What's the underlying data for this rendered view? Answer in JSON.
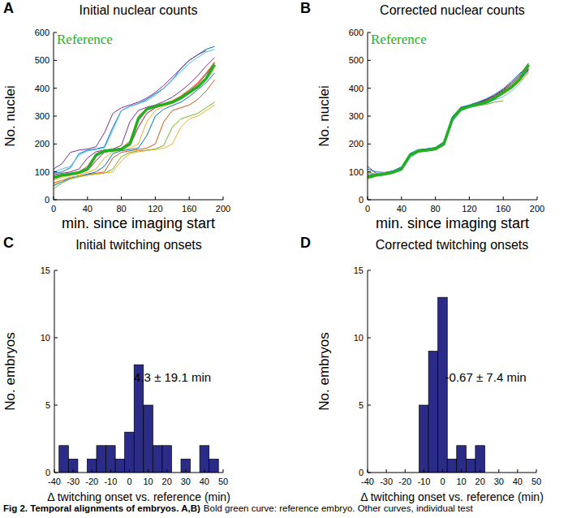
{
  "chart_data": [
    {
      "type": "line",
      "panel": "A",
      "title": "Initial nuclear counts",
      "x_label": "min. since imaging start",
      "y_label": "No. nuclei",
      "x": [
        0,
        10,
        20,
        30,
        40,
        50,
        60,
        70,
        80,
        90,
        100,
        110,
        120,
        130,
        140,
        150,
        160,
        170,
        180,
        190
      ],
      "xlim": [
        0,
        200
      ],
      "xticks": [
        0,
        40,
        80,
        120,
        160,
        200
      ],
      "ylim": [
        0,
        600
      ],
      "yticks": [
        0,
        100,
        200,
        300,
        400,
        500,
        600
      ],
      "legend": "upper left",
      "series": [
        {
          "color": "#0072bd",
          "values": [
            95,
            100,
            115,
            165,
            178,
            182,
            190,
            260,
            320,
            335,
            345,
            360,
            380,
            400,
            430,
            470,
            500,
            520,
            540,
            550
          ]
        },
        {
          "color": "#d95319",
          "values": [
            60,
            70,
            80,
            85,
            90,
            95,
            100,
            150,
            170,
            175,
            180,
            185,
            200,
            280,
            320,
            330,
            340,
            360,
            390,
            430
          ]
        },
        {
          "color": "#edb120",
          "values": [
            70,
            80,
            88,
            92,
            98,
            110,
            150,
            172,
            178,
            185,
            200,
            280,
            320,
            335,
            345,
            360,
            380,
            400,
            430,
            470
          ]
        },
        {
          "color": "#7e2f8e",
          "values": [
            90,
            95,
            100,
            110,
            150,
            172,
            178,
            182,
            195,
            280,
            320,
            332,
            340,
            352,
            368,
            390,
            415,
            445,
            480,
            510
          ]
        },
        {
          "color": "#77ac30",
          "values": [
            40,
            60,
            75,
            82,
            88,
            92,
            95,
            110,
            155,
            170,
            175,
            178,
            182,
            195,
            260,
            290,
            300,
            310,
            330,
            350
          ]
        },
        {
          "color": "#4dbeee",
          "values": [
            100,
            110,
            120,
            160,
            175,
            180,
            185,
            250,
            320,
            335,
            345,
            355,
            375,
            400,
            430,
            460,
            490,
            510,
            530,
            540
          ]
        },
        {
          "color": "#a2142f",
          "values": [
            75,
            85,
            90,
            95,
            105,
            140,
            170,
            176,
            182,
            195,
            260,
            310,
            330,
            340,
            350,
            370,
            390,
            415,
            450,
            490
          ]
        },
        {
          "color": "#0072bd",
          "values": [
            50,
            65,
            78,
            86,
            92,
            100,
            120,
            165,
            176,
            180,
            185,
            230,
            300,
            325,
            338,
            350,
            370,
            395,
            420,
            455
          ]
        },
        {
          "color": "#d95319",
          "values": [
            85,
            90,
            95,
            100,
            120,
            165,
            178,
            180,
            185,
            210,
            300,
            328,
            338,
            345,
            355,
            372,
            395,
            420,
            455,
            495
          ]
        },
        {
          "color": "#edb120",
          "values": [
            55,
            70,
            80,
            85,
            88,
            92,
            96,
            100,
            140,
            165,
            172,
            176,
            180,
            185,
            200,
            260,
            290,
            300,
            320,
            340
          ]
        },
        {
          "color": "#7e2f8e",
          "values": [
            110,
            130,
            170,
            178,
            182,
            190,
            240,
            310,
            330,
            340,
            350,
            365,
            385,
            410,
            440,
            470,
            500,
            520,
            535,
            null
          ]
        },
        {
          "name": "Reference",
          "color": "#22b022",
          "values": [
            80,
            88,
            92,
            98,
            110,
            160,
            175,
            178,
            182,
            200,
            290,
            325,
            335,
            342,
            350,
            365,
            385,
            405,
            435,
            485
          ]
        }
      ]
    },
    {
      "type": "line",
      "panel": "B",
      "title": "Corrected nuclear counts",
      "x_label": "min. since imaging start",
      "y_label": "No. nuclei",
      "x": [
        0,
        10,
        20,
        30,
        40,
        50,
        60,
        70,
        80,
        90,
        100,
        110,
        120,
        130,
        140,
        150,
        160,
        170,
        180,
        190
      ],
      "xlim": [
        0,
        200
      ],
      "xticks": [
        0,
        40,
        80,
        120,
        160,
        200
      ],
      "ylim": [
        0,
        600
      ],
      "yticks": [
        0,
        100,
        200,
        300,
        400,
        500,
        600
      ],
      "legend": "upper left",
      "series": [
        {
          "color": "#0072bd",
          "values": [
            95,
            90,
            95,
            100,
            115,
            158,
            176,
            180,
            185,
            205,
            285,
            322,
            334,
            345,
            355,
            368,
            382,
            400,
            430,
            465
          ]
        },
        {
          "color": "#d95319",
          "values": [
            85,
            92,
            95,
            100,
            108,
            162,
            172,
            176,
            180,
            198,
            292,
            328,
            336,
            340,
            348,
            362,
            380,
            null,
            null,
            null
          ]
        },
        {
          "color": "#edb120",
          "values": [
            75,
            85,
            92,
            96,
            112,
            155,
            174,
            178,
            183,
            202,
            288,
            320,
            333,
            341,
            352,
            366,
            388,
            410,
            440,
            480
          ]
        },
        {
          "color": "#7e2f8e",
          "values": [
            120,
            95,
            90,
            100,
            110,
            160,
            176,
            180,
            182,
            200,
            295,
            330,
            338,
            348,
            360,
            372,
            392,
            415,
            445,
            470
          ]
        },
        {
          "color": "#4dbeee",
          "values": [
            90,
            85,
            93,
            98,
            105,
            150,
            170,
            175,
            180,
            195,
            280,
            318,
            330,
            338,
            345,
            358,
            370,
            390,
            420,
            460
          ]
        },
        {
          "color": "#77ac30",
          "values": [
            100,
            92,
            95,
            102,
            112,
            165,
            178,
            182,
            186,
            205,
            285,
            324,
            335,
            338,
            342,
            350,
            355,
            null,
            null,
            null
          ]
        },
        {
          "color": "#a2142f",
          "values": [
            80,
            90,
            96,
            100,
            115,
            160,
            175,
            180,
            184,
            200,
            290,
            326,
            337,
            346,
            358,
            375,
            395,
            420,
            450,
            490
          ]
        },
        {
          "color": "#0072bd",
          "values": [
            110,
            100,
            98,
            104,
            118,
            166,
            180,
            183,
            188,
            208,
            298,
            332,
            340,
            350,
            362,
            378,
            398,
            425,
            455,
            475
          ]
        },
        {
          "color": "#d95319",
          "values": [
            88,
            86,
            92,
            97,
            108,
            156,
            173,
            177,
            181,
            197,
            287,
            323,
            333,
            343,
            354,
            369,
            386,
            408,
            438,
            478
          ]
        },
        {
          "color": "#edb120",
          "values": [
            95,
            93,
            96,
            101,
            113,
            162,
            177,
            181,
            185,
            203,
            293,
            327,
            336,
            344,
            352,
            364,
            378,
            398,
            425,
            455
          ]
        },
        {
          "color": "#7e2f8e",
          "values": [
            82,
            88,
            94,
            99,
            110,
            158,
            174,
            179,
            183,
            201,
            289,
            325,
            335,
            342,
            351,
            363,
            384,
            406,
            434,
            468
          ]
        },
        {
          "name": "Reference",
          "color": "#22b022",
          "values": [
            80,
            88,
            92,
            98,
            110,
            160,
            175,
            178,
            182,
            200,
            290,
            325,
            335,
            342,
            350,
            365,
            385,
            405,
            435,
            485
          ]
        }
      ]
    },
    {
      "type": "histogram",
      "panel": "C",
      "title": "Initial twitching onsets",
      "x_label": "Δ twitching onset vs. reference (min)",
      "y_label": "No. embryos",
      "annotation": "4.3 ± 19.1 min",
      "color": "#2b2b88",
      "bins": [
        -37.5,
        -32.5,
        -27.5,
        -22.5,
        -17.5,
        -12.5,
        -7.5,
        -2.5,
        2.5,
        7.5,
        12.5,
        17.5,
        22.5,
        27.5,
        32.5,
        37.5,
        42.5,
        47.5
      ],
      "values": [
        2,
        1,
        0,
        1,
        2,
        2,
        1,
        3,
        8,
        5,
        2,
        2,
        0,
        1,
        0,
        2,
        1
      ],
      "xlim": [
        -40,
        50
      ],
      "xticks": [
        -40,
        -30,
        -20,
        -10,
        0,
        10,
        20,
        30,
        40,
        50
      ],
      "ylim": [
        0,
        15
      ],
      "yticks": [
        0,
        5,
        10,
        15
      ]
    },
    {
      "type": "histogram",
      "panel": "D",
      "title": "Corrected twitching onsets",
      "x_label": "Δ twitching onset vs. reference (min)",
      "y_label": "No. embryos",
      "annotation": "-0.67 ± 7.4 min",
      "color": "#2b2b88",
      "bins": [
        -12.5,
        -7.5,
        -2.5,
        2.5,
        7.5,
        12.5,
        17.5,
        22.5
      ],
      "values": [
        5,
        9,
        13,
        1,
        2,
        1,
        2
      ],
      "xlim": [
        -40,
        50
      ],
      "xticks": [
        -40,
        -30,
        -20,
        -10,
        0,
        10,
        20,
        30,
        40,
        50
      ],
      "ylim": [
        0,
        15
      ],
      "yticks": [
        0,
        5,
        10,
        15
      ]
    }
  ],
  "caption": {
    "title": "Fig 2. Temporal alignments of embryos. A,B)",
    "text": "Bold green curve: reference embryo. Other curves, individual test"
  }
}
